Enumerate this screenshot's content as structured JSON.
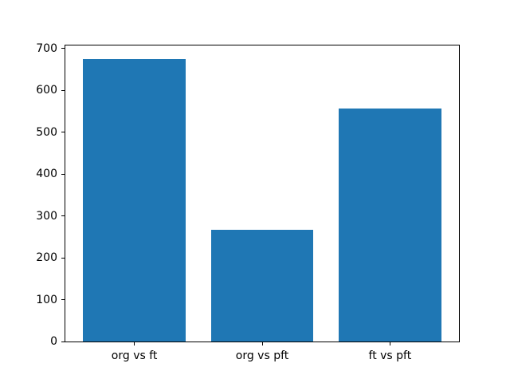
{
  "figure": {
    "background": "#ffffff",
    "text_color": "#000000"
  },
  "chart_data": {
    "type": "bar",
    "title": "",
    "xlabel": "",
    "ylabel": "",
    "categories": [
      "org vs ft",
      "org vs pft",
      "ft vs pft"
    ],
    "values": [
      675,
      266,
      557
    ],
    "bar_color": "#1f77b4",
    "bar_width_fraction": 0.8,
    "ylim": [
      0,
      707
    ],
    "yticks": [
      0,
      100,
      200,
      300,
      400,
      500,
      600,
      700
    ],
    "grid": false,
    "legend_position": "none"
  }
}
